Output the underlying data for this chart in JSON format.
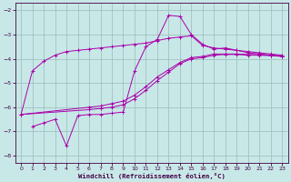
{
  "xlabel": "Windchill (Refroidissement éolien,°C)",
  "bg_color": "#c8e8e8",
  "grid_color": "#9bbaba",
  "line_color": "#aa00aa",
  "xlim": [
    -0.5,
    23.5
  ],
  "ylim": [
    -8.3,
    -1.7
  ],
  "xticks": [
    0,
    1,
    2,
    3,
    4,
    5,
    6,
    7,
    8,
    9,
    10,
    11,
    12,
    13,
    14,
    15,
    16,
    17,
    18,
    19,
    20,
    21,
    22,
    23
  ],
  "yticks": [
    -8,
    -7,
    -6,
    -5,
    -4,
    -3,
    -2
  ],
  "line1_x": [
    0,
    1,
    2,
    3,
    4,
    5,
    6,
    7,
    8,
    9,
    10,
    11,
    12,
    13,
    14,
    15,
    16,
    17,
    18,
    19,
    20,
    21,
    22,
    23
  ],
  "line1_y": [
    -6.3,
    -4.5,
    -4.1,
    -3.85,
    -3.7,
    -3.65,
    -3.6,
    -3.55,
    -3.5,
    -3.45,
    -3.4,
    -3.35,
    -3.25,
    -3.15,
    -3.1,
    -3.05,
    -3.45,
    -3.55,
    -3.6,
    -3.65,
    -3.7,
    -3.75,
    -3.8,
    -3.85
  ],
  "line2_x": [
    1,
    2,
    3,
    4,
    5,
    6,
    7,
    8,
    9,
    10,
    11,
    12,
    13,
    14,
    15,
    16,
    17,
    18,
    19,
    20,
    21,
    22,
    23
  ],
  "line2_y": [
    -6.8,
    -6.65,
    -6.5,
    -7.6,
    -6.35,
    -6.3,
    -6.3,
    -6.25,
    -6.2,
    -4.5,
    -3.5,
    -3.2,
    -2.2,
    -2.25,
    -3.0,
    -3.4,
    -3.6,
    -3.55,
    -3.65,
    -3.75,
    -3.8,
    -3.85,
    -3.9
  ],
  "line3_x": [
    0,
    6,
    7,
    8,
    9,
    10,
    11,
    12,
    13,
    14,
    15,
    16,
    17,
    18,
    19,
    20,
    21,
    22,
    23
  ],
  "line3_y": [
    -6.3,
    -6.0,
    -5.95,
    -5.85,
    -5.75,
    -5.5,
    -5.15,
    -4.75,
    -4.45,
    -4.15,
    -3.95,
    -3.9,
    -3.8,
    -3.8,
    -3.8,
    -3.82,
    -3.83,
    -3.85,
    -3.88
  ],
  "line4_x": [
    0,
    6,
    7,
    8,
    9,
    10,
    11,
    12,
    13,
    14,
    15,
    16,
    17,
    18,
    19,
    20,
    21,
    22,
    23
  ],
  "line4_y": [
    -6.3,
    -6.1,
    -6.05,
    -6.0,
    -5.9,
    -5.65,
    -5.3,
    -4.9,
    -4.55,
    -4.2,
    -4.0,
    -3.95,
    -3.85,
    -3.82,
    -3.82,
    -3.85,
    -3.85,
    -3.87,
    -3.9
  ]
}
